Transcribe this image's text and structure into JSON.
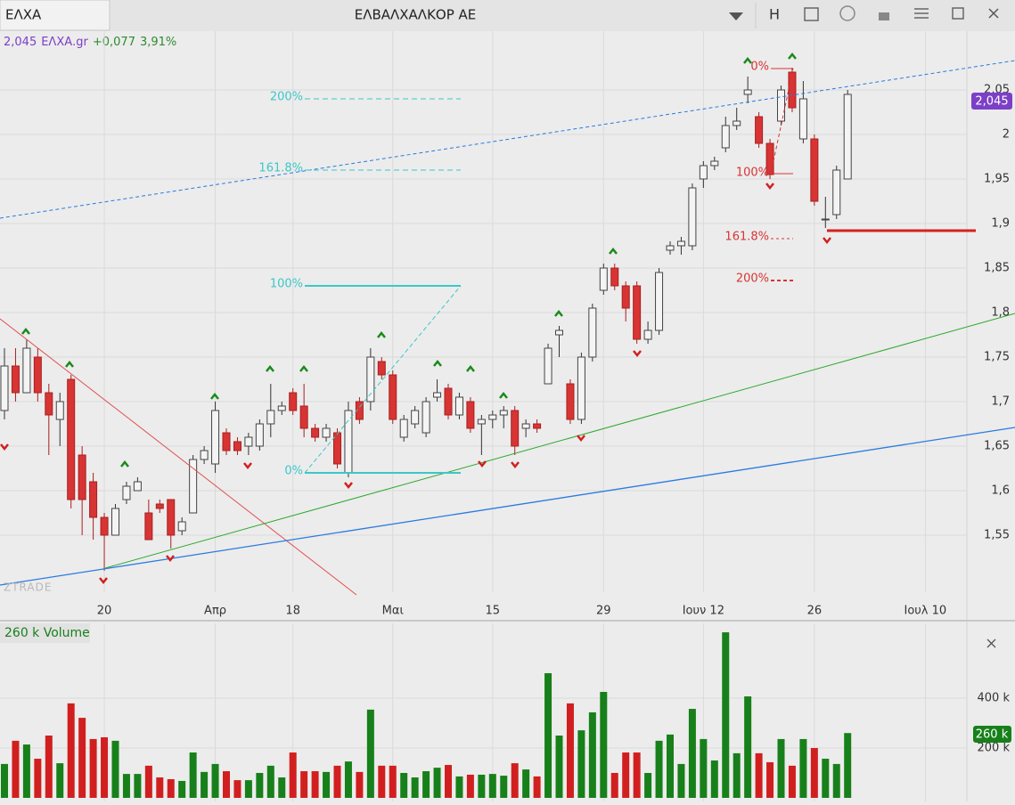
{
  "window": {
    "symbol": "ΕΛΧΑ",
    "title": "ΕΛΒΑΛΧΑΛΚΟΡ ΑΕ",
    "button": "H",
    "watermark": "ZTRADE",
    "volume_label": "260 k",
    "quote": {
      "price": "2,045",
      "symbol": "ΕΛΧΑ.gr",
      "change": "+0,077",
      "change_pct": "3,91%"
    },
    "fib_blue": [
      "200%",
      "161.8%",
      "100%",
      "0%"
    ],
    "fib_red": [
      "0%",
      "100%",
      "161.8%",
      "200%"
    ]
  },
  "chart_data": [
    {
      "type": "candlestick",
      "categories": [
        null,
        null,
        null,
        null,
        null,
        null,
        null,
        null,
        null,
        "20",
        null,
        null,
        null,
        null,
        null,
        null,
        null,
        null,
        null,
        "Απρ",
        null,
        null,
        null,
        null,
        null,
        null,
        "18",
        null,
        null,
        null,
        null,
        null,
        null,
        null,
        null,
        "Μαι",
        null,
        null,
        null,
        null,
        null,
        null,
        null,
        null,
        "15",
        null,
        null,
        null,
        null,
        null,
        null,
        null,
        null,
        null,
        "29",
        null,
        null,
        null,
        null,
        null,
        null,
        null,
        null,
        "Ιουν 12",
        null,
        null,
        null,
        null,
        null,
        null,
        null,
        null,
        null,
        "26",
        null,
        null,
        null,
        null,
        null,
        null,
        null,
        null,
        null,
        "Ιουλ 10",
        null,
        null,
        null
      ],
      "series": {
        "up_color": "#f4f4f4",
        "down_color": "#d83434",
        "open": [
          1.69,
          1.74,
          1.71,
          1.75,
          1.71,
          1.68,
          1.725,
          1.64,
          1.61,
          1.57,
          1.55,
          1.59,
          1.6,
          1.575,
          1.585,
          1.59,
          1.555,
          1.575,
          1.635,
          1.63,
          1.665,
          1.655,
          1.65,
          1.65,
          1.675,
          1.69,
          1.71,
          1.695,
          1.67,
          1.66,
          1.665,
          1.62,
          1.7,
          1.7,
          1.745,
          1.73,
          1.66,
          1.675,
          1.665,
          1.705,
          1.715,
          1.685,
          1.7,
          1.675,
          1.68,
          1.685,
          1.69,
          1.67,
          1.675,
          1.72,
          1.775,
          1.72,
          1.68,
          1.75,
          1.825,
          1.85,
          1.83,
          1.83,
          1.77,
          1.78,
          1.87,
          1.875,
          1.875,
          1.95,
          1.965,
          1.985,
          2.01,
          2.045,
          2.02,
          1.99,
          2.015,
          2.07,
          1.995,
          1.995,
          1.905,
          1.91,
          1.95,
          null,
          null,
          null,
          null,
          null,
          null,
          null,
          null,
          null,
          null
        ],
        "high": [
          1.76,
          1.76,
          1.77,
          1.76,
          1.72,
          1.71,
          1.73,
          1.65,
          1.62,
          1.575,
          1.585,
          1.61,
          1.615,
          1.59,
          1.59,
          1.59,
          1.57,
          1.64,
          1.65,
          1.7,
          1.67,
          1.66,
          1.665,
          1.68,
          1.72,
          1.7,
          1.715,
          1.72,
          1.675,
          1.675,
          1.67,
          1.7,
          1.705,
          1.76,
          1.75,
          1.735,
          1.685,
          1.695,
          1.705,
          1.725,
          1.72,
          1.71,
          1.705,
          1.685,
          1.69,
          1.695,
          1.695,
          1.68,
          1.68,
          1.765,
          1.785,
          1.725,
          1.755,
          1.81,
          1.855,
          1.855,
          1.835,
          1.835,
          1.79,
          1.85,
          1.88,
          1.885,
          1.945,
          1.97,
          1.975,
          2.02,
          2.03,
          2.065,
          2.025,
          1.995,
          2.055,
          2.075,
          2.06,
          2.0,
          1.93,
          1.965,
          2.05,
          null,
          null,
          null,
          null,
          null,
          null,
          null,
          null,
          null,
          null
        ],
        "low": [
          1.68,
          1.7,
          1.71,
          1.7,
          1.64,
          1.65,
          1.58,
          1.55,
          1.545,
          1.51,
          1.55,
          1.585,
          1.6,
          1.545,
          1.575,
          1.535,
          1.55,
          1.575,
          1.63,
          1.62,
          1.64,
          1.64,
          1.64,
          1.645,
          1.66,
          1.685,
          1.685,
          1.66,
          1.655,
          1.655,
          1.625,
          1.615,
          1.675,
          1.69,
          1.725,
          1.675,
          1.655,
          1.67,
          1.66,
          1.7,
          1.68,
          1.68,
          1.665,
          1.64,
          1.67,
          1.67,
          1.64,
          1.66,
          1.665,
          1.72,
          1.75,
          1.675,
          1.675,
          1.745,
          1.82,
          1.825,
          1.79,
          1.765,
          1.765,
          1.775,
          1.865,
          1.865,
          1.87,
          1.94,
          1.96,
          1.98,
          2.005,
          2.035,
          1.985,
          1.95,
          2.01,
          2.025,
          1.99,
          1.92,
          1.895,
          1.905,
          1.95,
          null,
          null,
          null,
          null,
          null,
          null,
          null,
          null,
          null,
          null
        ],
        "close": [
          1.74,
          1.71,
          1.76,
          1.71,
          1.685,
          1.7,
          1.59,
          1.59,
          1.57,
          1.55,
          1.58,
          1.605,
          1.61,
          1.545,
          1.58,
          1.55,
          1.565,
          1.635,
          1.645,
          1.69,
          1.645,
          1.645,
          1.66,
          1.675,
          1.69,
          1.695,
          1.69,
          1.67,
          1.66,
          1.67,
          1.63,
          1.69,
          1.68,
          1.75,
          1.73,
          1.68,
          1.68,
          1.69,
          1.7,
          1.71,
          1.685,
          1.705,
          1.67,
          1.68,
          1.685,
          1.69,
          1.65,
          1.675,
          1.67,
          1.76,
          1.78,
          1.68,
          1.75,
          1.805,
          1.85,
          1.83,
          1.805,
          1.77,
          1.78,
          1.845,
          1.875,
          1.88,
          1.94,
          1.965,
          1.97,
          2.01,
          2.015,
          2.05,
          1.99,
          1.955,
          2.05,
          2.03,
          2.04,
          1.925,
          1.905,
          1.96,
          2.045,
          null,
          null,
          null,
          null,
          null,
          null,
          null,
          null,
          null,
          null
        ]
      },
      "ylim": [
        1.49,
        2.11
      ],
      "yticks": [
        {
          "value": 1.55,
          "label": "1,55"
        },
        {
          "value": 1.6,
          "label": "1,6"
        },
        {
          "value": 1.65,
          "label": "1,65"
        },
        {
          "value": 1.7,
          "label": "1,7"
        },
        {
          "value": 1.75,
          "label": "1,75"
        },
        {
          "value": 1.8,
          "label": "1,8"
        },
        {
          "value": 1.85,
          "label": "1,85"
        },
        {
          "value": 1.9,
          "label": "1,9"
        },
        {
          "value": 1.95,
          "label": "1,95"
        },
        2,
        {
          "value": 2.05,
          "label": "2,05"
        }
      ],
      "grid": true
    },
    {
      "type": "bar",
      "title": "260 k Volume",
      "up_color": "#17801a",
      "down_color": "#d11f1f",
      "values": [
        136000,
        229000,
        214000,
        157000,
        250000,
        139000,
        379000,
        321000,
        236000,
        243000,
        229000,
        96000,
        96000,
        129000,
        82000,
        75000,
        68000,
        182000,
        104000,
        136000,
        107000,
        71000,
        71000,
        100000,
        129000,
        82000,
        182000,
        107000,
        107000,
        104000,
        129000,
        146000,
        104000,
        354000,
        129000,
        129000,
        100000,
        82000,
        107000,
        121000,
        132000,
        86000,
        93000,
        93000,
        96000,
        89000,
        139000,
        114000,
        86000,
        500000,
        250000,
        379000,
        271000,
        343000,
        425000,
        100000,
        182000,
        182000,
        100000,
        229000,
        254000,
        136000,
        357000,
        236000,
        150000,
        664000,
        179000,
        407000,
        179000,
        143000,
        236000,
        129000,
        236000,
        200000,
        157000,
        136000,
        260000,
        null,
        null,
        null,
        null,
        null,
        null,
        null,
        null,
        null,
        null
      ],
      "ylim": [
        0,
        700000
      ],
      "yticks": [
        {
          "value": 200000,
          "label": "200 k"
        },
        {
          "value": 400000,
          "label": "400 k"
        }
      ],
      "grid": true
    }
  ]
}
